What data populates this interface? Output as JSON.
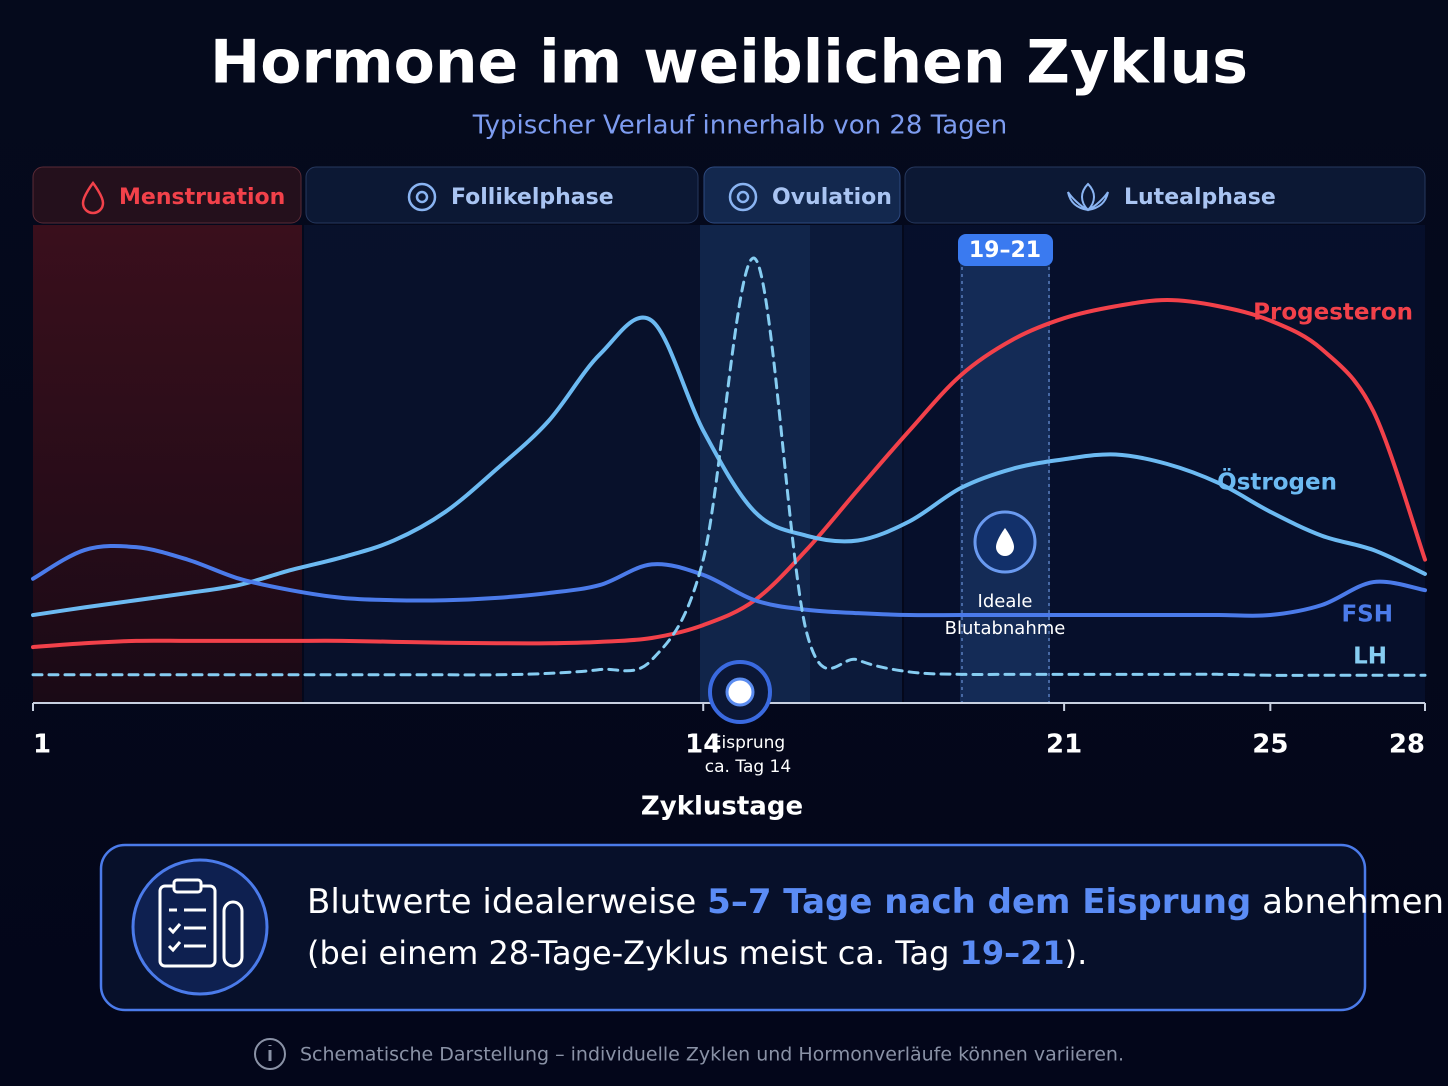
{
  "chart_data": {
    "type": "line",
    "title": "Hormone im weiblichen Zyklus",
    "subtitle": "Typischer Verlauf innerhalb von 28 Tagen",
    "xlabel": "Zyklustage",
    "phases": [
      "Menstruation",
      "Follikelphase",
      "Ovulation",
      "Lutealphase"
    ],
    "x": [
      1,
      2,
      3,
      4,
      5,
      6,
      7,
      8,
      9,
      10,
      11,
      12,
      13,
      14,
      15,
      16,
      17,
      18,
      19,
      20,
      21,
      22,
      23,
      24,
      25,
      26,
      27,
      28
    ],
    "xlim": [
      1,
      28
    ],
    "xticks": [
      1,
      14,
      21,
      25,
      28
    ],
    "ylim": [
      0,
      100
    ],
    "series": [
      {
        "name": "Progesteron",
        "color": "#f2414a",
        "dashed": false,
        "values": [
          11.7,
          12.5,
          13,
          13,
          13,
          13,
          13,
          12.8,
          12.6,
          12.5,
          12.5,
          12.8,
          13.6,
          16.3,
          21.5,
          32,
          44.6,
          57,
          68.6,
          76,
          80.5,
          83,
          84.3,
          83,
          80,
          74,
          61,
          30
        ]
      },
      {
        "name": "Östrogen",
        "color": "#6cbaf2",
        "dashed": false,
        "values": [
          18.4,
          20,
          21.5,
          23,
          24.7,
          27.8,
          30.5,
          34,
          40,
          49,
          59,
          73,
          80,
          57,
          40,
          35,
          34,
          38,
          45,
          49,
          51,
          52,
          50,
          46,
          40,
          35,
          32,
          27
        ]
      },
      {
        "name": "FSH",
        "color": "#4b7bea",
        "dashed": false,
        "values": [
          26,
          32,
          32.6,
          30,
          26,
          23.6,
          22,
          21.5,
          21.5,
          22,
          23,
          24.7,
          29,
          26.8,
          21.5,
          19.5,
          18.8,
          18.4,
          18.4,
          18.4,
          18.4,
          18.4,
          18.4,
          18.4,
          18.4,
          20.5,
          25.3,
          23.6
        ]
      },
      {
        "name": "LH",
        "color": "#86cdf2",
        "dashed": true,
        "values": [
          5.9,
          5.9,
          5.9,
          5.9,
          5.9,
          5.9,
          5.9,
          5.9,
          5.9,
          5.9,
          6.2,
          7,
          9,
          30,
          93,
          15,
          9,
          6.5,
          6,
          6,
          6,
          6,
          6,
          6,
          5.8,
          5.8,
          5.8,
          5.8
        ]
      }
    ],
    "annotations": {
      "window": "19–21",
      "blood": [
        "Ideale",
        "Blutabnahme"
      ],
      "ovulation": [
        "Eisprung",
        "ca. Tag 14"
      ]
    }
  },
  "callout": {
    "line1": [
      "Blutwerte idealerweise ",
      "5–7 Tage nach dem Eisprung",
      " abnehmen"
    ],
    "line2": [
      "(bei einem 28-Tage-Zyklus meist ca. Tag ",
      "19–21",
      ")."
    ]
  },
  "footnote": "Schematische Darstellung – individuelle Zyklen und Hormonverläufe können variieren."
}
